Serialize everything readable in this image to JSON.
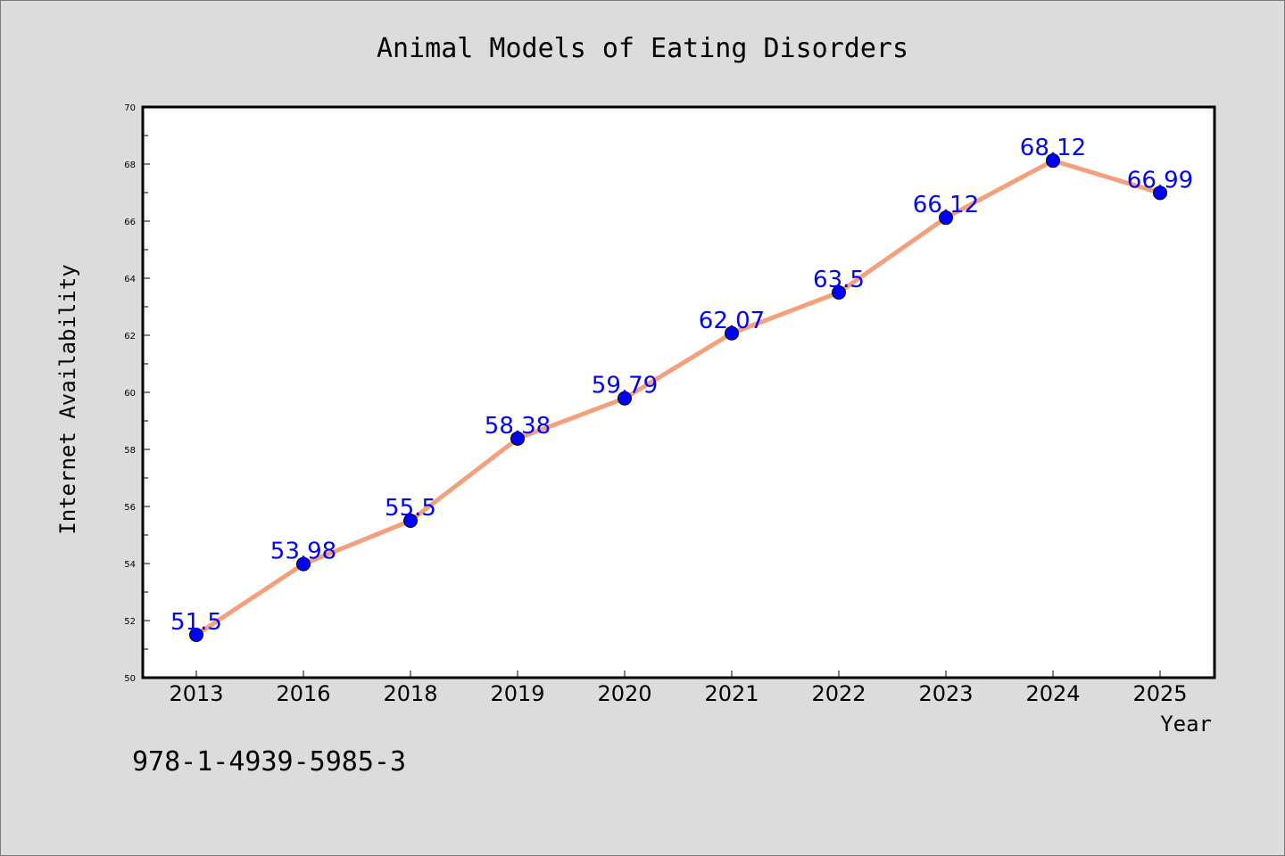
{
  "chart_data": {
    "type": "line",
    "title": "Animal Models of Eating Disorders",
    "xlabel": "Year",
    "ylabel": "Internet Availability",
    "categories": [
      "2013",
      "2016",
      "2018",
      "2019",
      "2020",
      "2021",
      "2022",
      "2023",
      "2024",
      "2025"
    ],
    "series": [
      {
        "values": [
          51.5,
          53.98,
          55.5,
          58.38,
          59.79,
          62.07,
          63.5,
          66.12,
          68.12,
          66.99
        ],
        "data_labels": [
          "51.5",
          "53.98",
          "55.5",
          "58.38",
          "59.79",
          "62.07",
          "63.5",
          "66.12",
          "68.12",
          "66.99"
        ]
      }
    ],
    "ylim": [
      50,
      70
    ],
    "yticks": [
      "50",
      "52",
      "54",
      "56",
      "58",
      "60",
      "62",
      "64",
      "66",
      "68",
      "70"
    ],
    "grid": false,
    "legend": "none",
    "colors": {
      "line": "#f4a07c",
      "marker": "#0000ff",
      "data_label": "#0000ff",
      "background": "#dcdcdc",
      "plot_background": "#ffffff"
    }
  },
  "footer": {
    "isbn": "978-1-4939-5985-3"
  }
}
